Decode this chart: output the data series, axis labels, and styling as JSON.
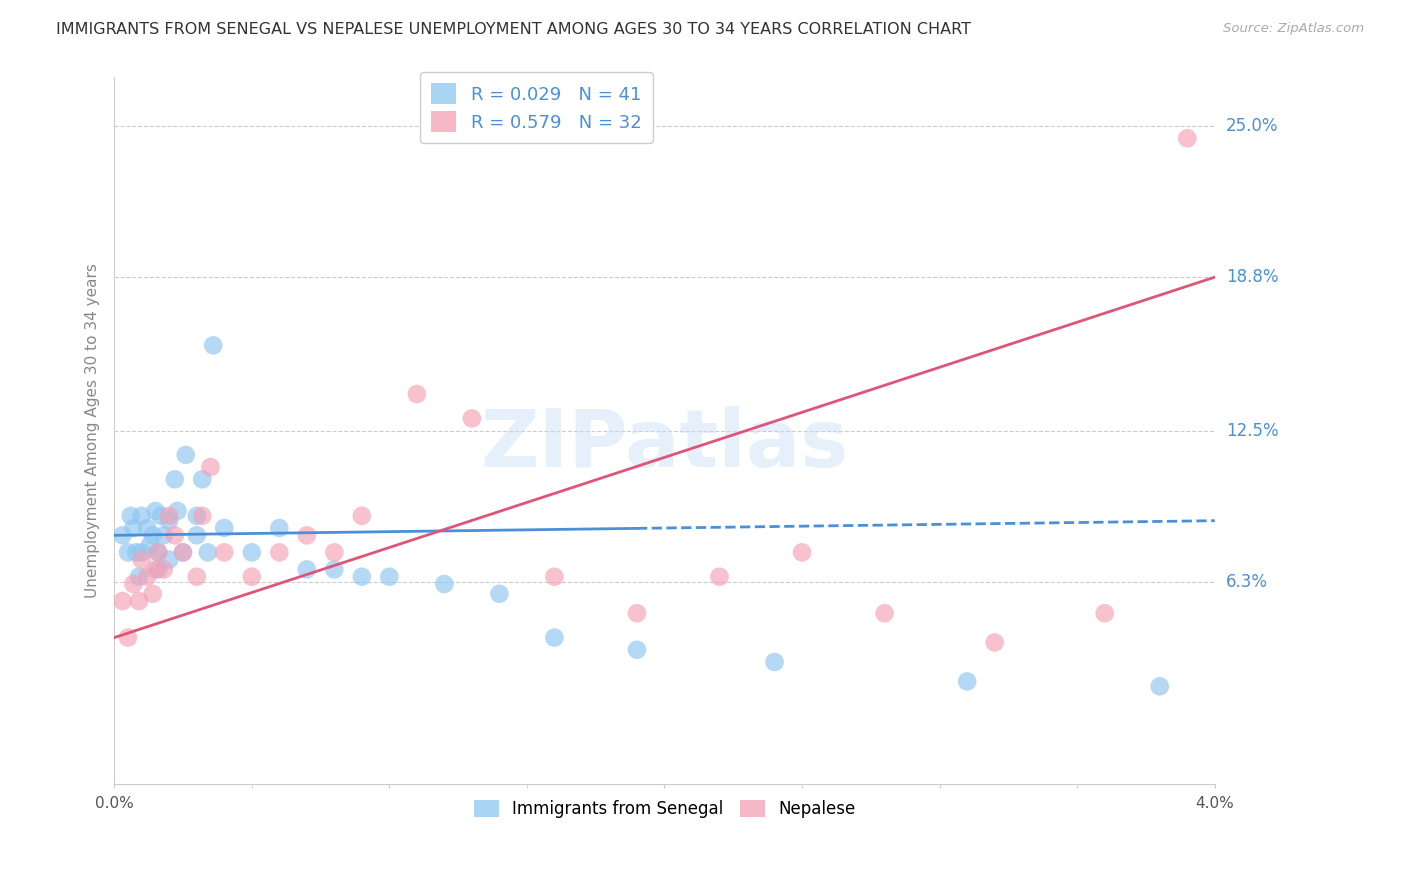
{
  "title": "IMMIGRANTS FROM SENEGAL VS NEPALESE UNEMPLOYMENT AMONG AGES 30 TO 34 YEARS CORRELATION CHART",
  "source": "Source: ZipAtlas.com",
  "ylabel": "Unemployment Among Ages 30 to 34 years",
  "ytick_labels": [
    "25.0%",
    "18.8%",
    "12.5%",
    "6.3%"
  ],
  "ytick_values": [
    0.25,
    0.188,
    0.125,
    0.063
  ],
  "xlim": [
    0.0,
    0.04
  ],
  "ylim": [
    -0.02,
    0.27
  ],
  "series1_label": "Immigrants from Senegal",
  "series1_R": "0.029",
  "series1_N": "41",
  "series1_color": "#8ec6f0",
  "series1_line_color": "#4a90d9",
  "series2_label": "Nepalese",
  "series2_R": "0.579",
  "series2_N": "32",
  "series2_color": "#f4a0b5",
  "series2_line_color": "#e05577",
  "watermark": "ZIPatlas",
  "senegal_x": [
    0.0003,
    0.0005,
    0.0006,
    0.0007,
    0.0008,
    0.0009,
    0.001,
    0.001,
    0.0012,
    0.0013,
    0.0014,
    0.0015,
    0.0016,
    0.0016,
    0.0017,
    0.0018,
    0.002,
    0.002,
    0.0022,
    0.0023,
    0.0025,
    0.0026,
    0.003,
    0.003,
    0.0032,
    0.0034,
    0.0036,
    0.004,
    0.005,
    0.006,
    0.007,
    0.008,
    0.009,
    0.01,
    0.012,
    0.014,
    0.016,
    0.019,
    0.024,
    0.031,
    0.038
  ],
  "senegal_y": [
    0.082,
    0.075,
    0.09,
    0.085,
    0.075,
    0.065,
    0.09,
    0.075,
    0.085,
    0.078,
    0.082,
    0.092,
    0.075,
    0.068,
    0.09,
    0.082,
    0.088,
    0.072,
    0.105,
    0.092,
    0.075,
    0.115,
    0.09,
    0.082,
    0.105,
    0.075,
    0.16,
    0.085,
    0.075,
    0.085,
    0.068,
    0.068,
    0.065,
    0.065,
    0.062,
    0.058,
    0.04,
    0.035,
    0.03,
    0.022,
    0.02
  ],
  "nepalese_x": [
    0.0003,
    0.0005,
    0.0007,
    0.0009,
    0.001,
    0.0012,
    0.0014,
    0.0015,
    0.0016,
    0.0018,
    0.002,
    0.0022,
    0.0025,
    0.003,
    0.0032,
    0.0035,
    0.004,
    0.005,
    0.006,
    0.007,
    0.008,
    0.009,
    0.011,
    0.013,
    0.016,
    0.019,
    0.022,
    0.025,
    0.028,
    0.032,
    0.036,
    0.039
  ],
  "nepalese_y": [
    0.055,
    0.04,
    0.062,
    0.055,
    0.072,
    0.065,
    0.058,
    0.068,
    0.075,
    0.068,
    0.09,
    0.082,
    0.075,
    0.065,
    0.09,
    0.11,
    0.075,
    0.065,
    0.075,
    0.082,
    0.075,
    0.09,
    0.14,
    0.13,
    0.065,
    0.05,
    0.065,
    0.075,
    0.05,
    0.038,
    0.05,
    0.245
  ],
  "senegal_trend_x": [
    0.0,
    0.04
  ],
  "senegal_trend_y": [
    0.082,
    0.088
  ],
  "nepalese_trend_x": [
    0.0,
    0.04
  ],
  "nepalese_trend_y": [
    0.04,
    0.188
  ]
}
